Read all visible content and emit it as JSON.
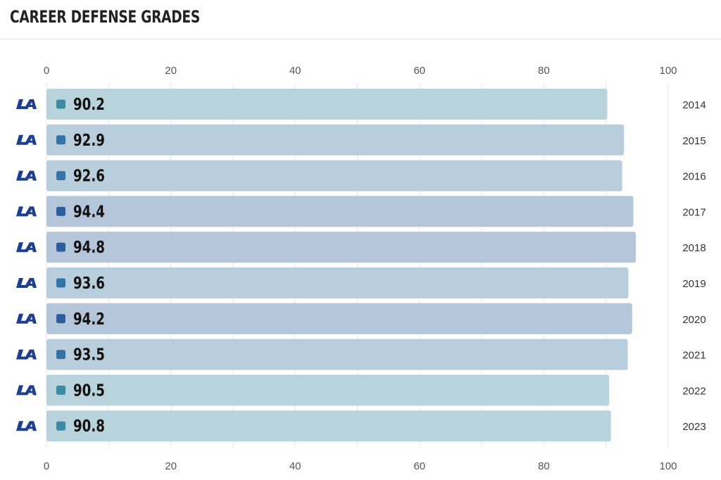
{
  "header": {
    "title": "CAREER DEFENSE GRADES"
  },
  "team_icon": "rams-la-logo-icon",
  "colors": {
    "tier_a": {
      "bar": "#b9d3dc",
      "marker": "#3d8aa2"
    },
    "tier_b": {
      "bar": "#b8cedc",
      "marker": "#3572a8"
    },
    "tier_c": {
      "bar": "#b6c6da",
      "marker": "#2f5c9a"
    },
    "logo_blue": "#1e3f8f",
    "logo_gold": "#f2c230"
  },
  "chart_data": {
    "type": "bar",
    "orientation": "horizontal",
    "categories": [
      "2014",
      "2015",
      "2016",
      "2017",
      "2018",
      "2019",
      "2020",
      "2021",
      "2022",
      "2023"
    ],
    "values": [
      90.2,
      92.9,
      92.6,
      94.4,
      94.8,
      93.6,
      94.2,
      93.5,
      90.5,
      90.8
    ],
    "data_labels": [
      "90.2",
      "92.9",
      "92.6",
      "94.4",
      "94.8",
      "93.6",
      "94.2",
      "93.5",
      "90.5",
      "90.8"
    ],
    "xlim": [
      0,
      100
    ],
    "xticks": [
      0,
      20,
      40,
      60,
      80,
      100
    ],
    "xtick_labels": [
      "0",
      "20",
      "40",
      "60",
      "80",
      "100"
    ],
    "axis_position": "top-and-bottom",
    "grid": true
  }
}
